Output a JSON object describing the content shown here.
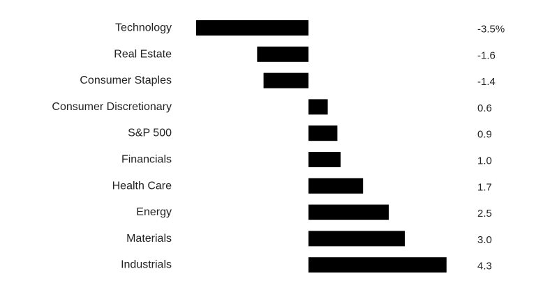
{
  "chart_data": {
    "type": "bar",
    "orientation": "horizontal",
    "categories": [
      "Technology",
      "Real Estate",
      "Consumer Staples",
      "Consumer Discretionary",
      "S&P 500",
      "Financials",
      "Health Care",
      "Energy",
      "Materials",
      "Industrials"
    ],
    "values": [
      -3.5,
      -1.6,
      -1.4,
      0.6,
      0.9,
      1.0,
      1.7,
      2.5,
      3.0,
      4.3
    ],
    "value_labels": [
      "-3.5%",
      "-1.6",
      "-1.4",
      "0.6",
      "0.9",
      "1.0",
      "1.7",
      "2.5",
      "3.0",
      "4.3"
    ],
    "bar_color": "#000000",
    "xlim": [
      -3.5,
      4.3
    ],
    "grid": false,
    "legend": "none"
  }
}
